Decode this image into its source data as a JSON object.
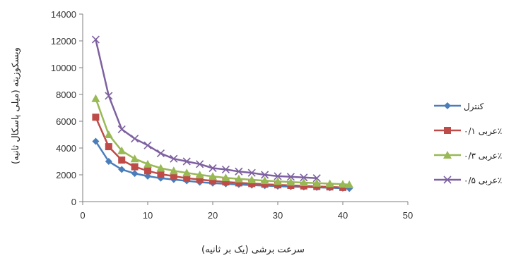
{
  "chart_data": {
    "type": "line",
    "title": "",
    "xlabel": "سرعت برشی (یک بر ثانیه)",
    "ylabel": "ویسکوزیته (میلی پاسکال ثانیه)",
    "xlim": [
      0,
      50
    ],
    "ylim": [
      0,
      14000
    ],
    "x_ticks": [
      0,
      10,
      20,
      30,
      40,
      50
    ],
    "y_ticks": [
      0,
      2000,
      4000,
      6000,
      8000,
      10000,
      12000,
      14000
    ],
    "grid": false,
    "legend_position": "right",
    "series": [
      {
        "name": "کنترل",
        "color": "#4a7ebb",
        "marker": "diamond",
        "x": [
          2,
          4,
          6,
          8,
          10,
          12,
          14,
          16,
          18,
          20,
          22,
          24,
          26,
          28,
          30,
          32,
          34,
          36,
          38,
          40,
          41
        ],
        "y": [
          4500,
          3000,
          2400,
          2100,
          1900,
          1750,
          1650,
          1550,
          1450,
          1380,
          1330,
          1280,
          1230,
          1190,
          1150,
          1120,
          1090,
          1060,
          1030,
          1000,
          980
        ]
      },
      {
        "name": "عربی ۰/۱٪",
        "color": "#be4b48",
        "marker": "square",
        "x": [
          2,
          4,
          6,
          8,
          10,
          12,
          14,
          16,
          18,
          20,
          22,
          24,
          26,
          28,
          30,
          32,
          34,
          36,
          38,
          40
        ],
        "y": [
          6300,
          4100,
          3100,
          2600,
          2300,
          2050,
          1900,
          1750,
          1650,
          1550,
          1470,
          1400,
          1350,
          1300,
          1250,
          1210,
          1170,
          1130,
          1100,
          1060
        ]
      },
      {
        "name": "عربی ۰/۳٪",
        "color": "#98b954",
        "marker": "triangle",
        "x": [
          2,
          4,
          6,
          8,
          10,
          12,
          14,
          16,
          18,
          20,
          22,
          24,
          26,
          28,
          30,
          32,
          34,
          36,
          38,
          40,
          41
        ],
        "y": [
          7700,
          5000,
          3800,
          3200,
          2800,
          2500,
          2300,
          2150,
          2000,
          1880,
          1780,
          1700,
          1630,
          1570,
          1510,
          1460,
          1420,
          1380,
          1340,
          1300,
          1270
        ]
      },
      {
        "name": "عربی ۰/۵٪",
        "color": "#7d60a0",
        "marker": "x",
        "x": [
          2,
          4,
          6,
          8,
          10,
          12,
          14,
          16,
          18,
          20,
          22,
          24,
          26,
          28,
          30,
          32,
          34,
          36
        ],
        "y": [
          12100,
          7900,
          5400,
          4700,
          4200,
          3600,
          3200,
          3000,
          2800,
          2500,
          2400,
          2250,
          2150,
          2000,
          1900,
          1850,
          1800,
          1750
        ]
      }
    ]
  }
}
